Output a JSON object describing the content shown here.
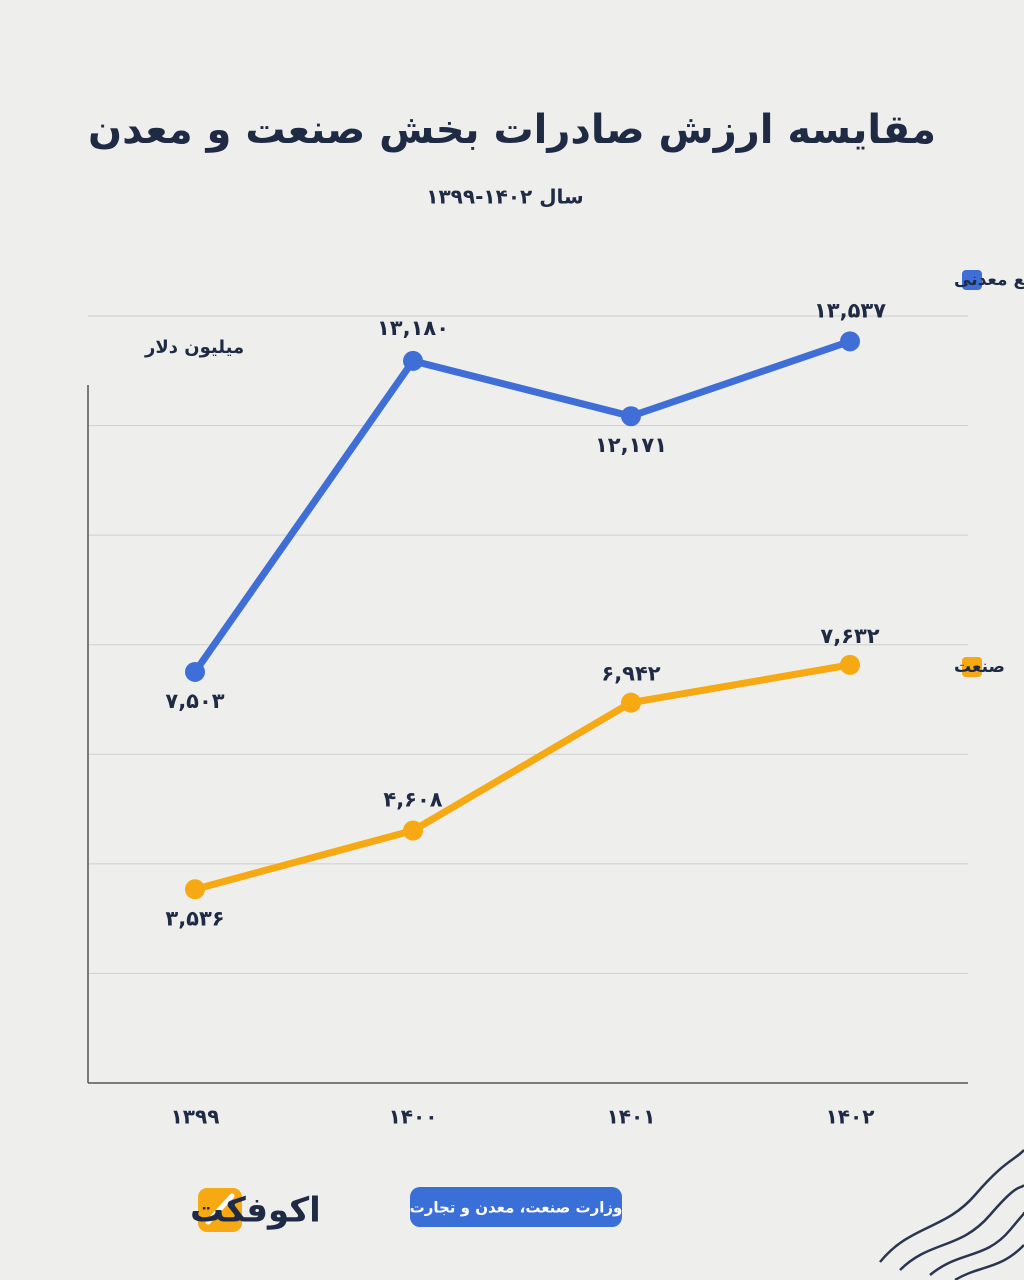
{
  "chart_data": {
    "type": "line",
    "title": "مقایسه ارزش صادرات بخش صنعت و معدن",
    "subtitle": "سال ۱۴۰۲-۱۳۹۹",
    "y_label": "میلیون دلار",
    "categories": [
      "۱۳۹۹",
      "۱۴۰۰",
      "۱۴۰۱",
      "۱۴۰۲"
    ],
    "series": [
      {
        "name": "معدن و صنایع معدنی",
        "color": "#3f6fd6",
        "values": [
          7503,
          13180,
          12171,
          13537
        ],
        "value_labels": [
          "۷,۵۰۳",
          "۱۳,۱۸۰",
          "۱۲,۱۷۱",
          "۱۳,۵۳۷"
        ]
      },
      {
        "name": "صنعت",
        "color": "#f7a913",
        "values": [
          3536,
          4608,
          6942,
          7632
        ],
        "value_labels": [
          "۳,۵۳۶",
          "۴,۶۰۸",
          "۶,۹۴۲",
          "۷,۶۳۲"
        ]
      }
    ],
    "ylim": [
      0,
      14000
    ],
    "yticks": [
      0,
      2000,
      4000,
      6000,
      8000,
      10000,
      12000,
      14000
    ],
    "grid": true
  },
  "source": "وزارت صنعت، معدن و تجارت",
  "brand": "اکوفکت"
}
